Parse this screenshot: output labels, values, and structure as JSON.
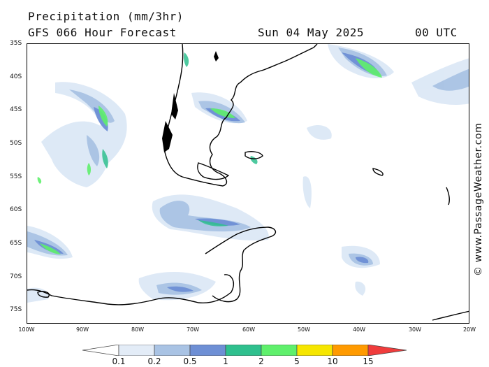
{
  "header": {
    "title": "Precipitation (mm/3hr)",
    "model": "GFS 066 Hour Forecast",
    "date": "Sun 04 May 2025",
    "time": "00 UTC"
  },
  "credit": "© www.PassageWeather.com",
  "latitude_labels": [
    "35S",
    "40S",
    "45S",
    "50S",
    "55S",
    "60S",
    "65S",
    "70S",
    "75S"
  ],
  "longitude_labels": [
    "100W",
    "90W",
    "80W",
    "70W",
    "60W",
    "50W",
    "40W",
    "30W",
    "20W"
  ],
  "legend": {
    "values": [
      "0.1",
      "0.2",
      "0.5",
      "1",
      "2",
      "5",
      "10",
      "15"
    ],
    "colors": [
      "#ffffff",
      "#e3ecf7",
      "#a9c3e4",
      "#6e8fd5",
      "#2fc08e",
      "#5ff06c",
      "#f6e600",
      "#ff9a00",
      "#f03c3c"
    ]
  },
  "colors": {
    "land_outline": "#000000",
    "background": "#ffffff"
  }
}
